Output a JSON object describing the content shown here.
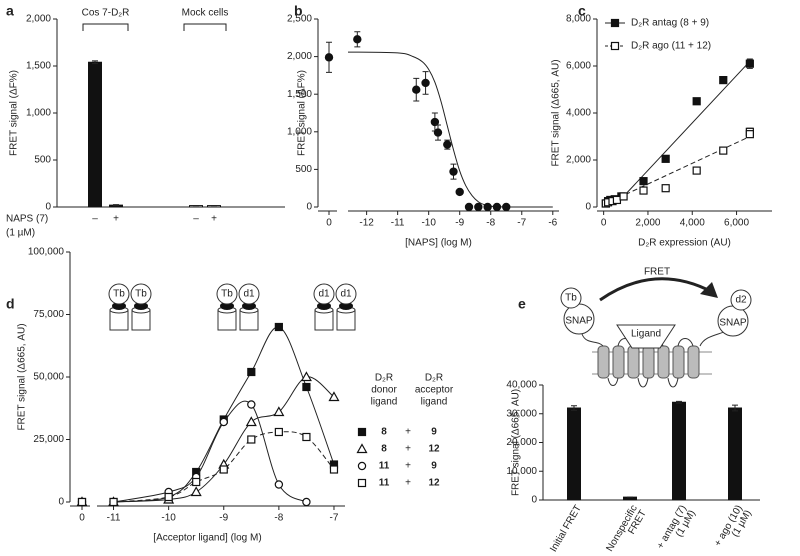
{
  "chart_data": [
    {
      "panel": "a",
      "type": "bar",
      "ylabel": "FRET signal (ΔF%)",
      "groups": [
        "Cos 7-D₂R",
        "Mock cells"
      ],
      "categories": [
        "–",
        "+",
        "–",
        "+"
      ],
      "treatment_label": "NAPS (7)",
      "treatment_dose": "(1 µM)",
      "values": [
        1540,
        20,
        15,
        15
      ],
      "errors": [
        15,
        5,
        0,
        0
      ],
      "colors": [
        "#111111",
        "#111111",
        "#ffffff",
        "#ffffff"
      ],
      "ylim": [
        0,
        2000
      ],
      "yticks": [
        0,
        500,
        {
          "value": 1000,
          "label": "1,000"
        },
        {
          "value": 1500,
          "label": "1,500"
        },
        {
          "value": 2000,
          "label": "2,000"
        }
      ]
    },
    {
      "panel": "b",
      "type": "scatter",
      "ylabel": "FRET signal (ΔF%)",
      "xlabel": "[NAPS] (log M)",
      "marker": "circle",
      "filled": true,
      "control_label": "0",
      "control": {
        "value": 1990,
        "error": 200
      },
      "x": [
        -12.3,
        -10.4,
        -10.1,
        -9.8,
        -9.7,
        -9.4,
        -9.2,
        -9.0,
        -8.7,
        -8.4,
        -8.1,
        -7.8,
        -7.5
      ],
      "values": [
        2230,
        1560,
        1650,
        1130,
        990,
        830,
        470,
        200,
        0,
        0,
        0,
        0,
        0
      ],
      "errors": [
        100,
        150,
        150,
        120,
        100,
        60,
        100,
        0,
        0,
        0,
        0,
        0,
        0
      ],
      "fit": {
        "x": [
          -12.6,
          -11,
          -10.5,
          -10.2,
          -10,
          -9.8,
          -9.6,
          -9.4,
          -9.2,
          -9,
          -8.8,
          -8.6,
          -8.4,
          -8.2,
          -8,
          -7.5,
          -7,
          -6
        ],
        "values": [
          2060,
          2050,
          2000,
          1930,
          1830,
          1660,
          1400,
          1080,
          760,
          480,
          280,
          150,
          70,
          30,
          10,
          0,
          0,
          0
        ]
      },
      "xlim": [
        -12.6,
        -5.8
      ],
      "xticks": [
        -12,
        -11,
        -10,
        -9,
        -8,
        -7,
        -6
      ],
      "ylim": [
        0,
        2500
      ],
      "yticks": [
        0,
        500,
        {
          "value": 1000,
          "label": "1,000"
        },
        {
          "value": 1500,
          "label": "1,500"
        },
        {
          "value": 2000,
          "label": "2,000"
        },
        {
          "value": 2500,
          "label": "2,500"
        }
      ]
    },
    {
      "panel": "c",
      "type": "scatter",
      "ylabel": "FRET signal (Δ665, AU)",
      "xlabel": "D₂R expression (AU)",
      "legend": "upper left",
      "series": [
        {
          "name": "D₂R antag (8 + 9)",
          "marker": "square",
          "filled": true,
          "dashed": false,
          "x": [
            100,
            200,
            300,
            500,
            800,
            1800,
            2800,
            4200,
            5400,
            6600
          ],
          "values": [
            150,
            250,
            300,
            330,
            450,
            1100,
            2050,
            4500,
            5400,
            6100
          ],
          "errors": [
            0,
            0,
            0,
            0,
            0,
            0,
            0,
            0,
            0,
            200
          ],
          "line_x": [
            800,
            6600
          ],
          "line_values": [
            350,
            6200
          ]
        },
        {
          "name": "D₂R ago (11 + 12)",
          "marker": "square",
          "filled": false,
          "dashed": true,
          "x": [
            100,
            200,
            400,
            600,
            900,
            1800,
            2800,
            4200,
            5400,
            6600,
            6600
          ],
          "values": [
            150,
            200,
            250,
            300,
            450,
            700,
            800,
            1550,
            2400,
            3200,
            3100
          ],
          "errors": [
            0,
            0,
            0,
            0,
            0,
            0,
            0,
            0,
            0,
            150,
            0
          ],
          "line_x": [
            0,
            6600
          ],
          "line_values": [
            100,
            3000
          ]
        }
      ],
      "xlim": [
        -300,
        7600
      ],
      "xticks": [
        0,
        {
          "value": 2000,
          "label": "2,000"
        },
        {
          "value": 4000,
          "label": "4,000"
        },
        {
          "value": 6000,
          "label": "6,000"
        }
      ],
      "ylim": [
        0,
        8000
      ],
      "yticks": [
        0,
        {
          "value": 2000,
          "label": "2,000"
        },
        {
          "value": 4000,
          "label": "4,000"
        },
        {
          "value": 6000,
          "label": "6,000"
        },
        {
          "value": 8000,
          "label": "8,000"
        }
      ]
    },
    {
      "panel": "d",
      "type": "line",
      "ylabel": "FRET signal (Δ665, AU)",
      "xlabel": "[Acceptor ligand] (log M)",
      "schematic": [
        [
          "Tb",
          "Tb"
        ],
        [
          "Tb",
          "d1"
        ],
        [
          "d1",
          "d1"
        ]
      ],
      "legend_headers": [
        [
          "D₂R",
          "donor",
          "ligand"
        ],
        [
          "D₂R",
          "acceptor",
          "ligand"
        ]
      ],
      "legend_join": "+",
      "control_label": "0",
      "x": [
        -11,
        -10,
        -9.5,
        -9,
        -8.5,
        -8,
        -7.5,
        -7
      ],
      "series": [
        {
          "donor": "8",
          "acceptor": "9",
          "marker": "square",
          "filled": true,
          "dashed": false,
          "control": 0,
          "values": [
            0,
            2000,
            12000,
            33000,
            52000,
            70000,
            46000,
            15000
          ]
        },
        {
          "donor": "8",
          "acceptor": "12",
          "marker": "triangle",
          "filled": false,
          "dashed": false,
          "control": 0,
          "values": [
            0,
            1000,
            4000,
            15000,
            32000,
            36000,
            50000,
            42000
          ]
        },
        {
          "donor": "11",
          "acceptor": "9",
          "marker": "circle",
          "filled": false,
          "dashed": false,
          "control": 0,
          "values": [
            0,
            4000,
            10000,
            32000,
            39000,
            7000,
            0,
            null
          ]
        },
        {
          "donor": "11",
          "acceptor": "12",
          "marker": "square",
          "filled": false,
          "dashed": true,
          "control": 0,
          "values": [
            0,
            2000,
            8000,
            13000,
            25000,
            28000,
            26000,
            13000
          ]
        }
      ],
      "xlim": [
        -11.3,
        -6.8
      ],
      "xticks": [
        -11,
        -10,
        -9,
        -8,
        -7
      ],
      "ylim": [
        0,
        100000
      ],
      "yticks": [
        0,
        {
          "value": 25000,
          "label": "25,000"
        },
        {
          "value": 50000,
          "label": "50,000"
        },
        {
          "value": 75000,
          "label": "75,000"
        },
        {
          "value": 100000,
          "label": "100,000"
        }
      ]
    },
    {
      "panel": "e",
      "type": "bar",
      "ylabel": "FRET signal (Δ665, AU)",
      "schematic": {
        "fret": "FRET",
        "donor": "Tb",
        "donor_tag": "SNAP",
        "ligand": "Ligand",
        "acceptor": "d2",
        "acceptor_tag": "SNAP"
      },
      "categories": [
        [
          "Initial FRET"
        ],
        [
          "Nonspecific",
          "FRET"
        ],
        [
          "+ antag (7)",
          "(1 µM)"
        ],
        [
          "+ ago (10)",
          "(1 µM)"
        ]
      ],
      "values": [
        32000,
        1000,
        34000,
        32000
      ],
      "errors": [
        800,
        0,
        300,
        1000
      ],
      "colors": [
        "#111111",
        "#111111",
        "#111111",
        "#111111"
      ],
      "ylim": [
        0,
        40000
      ],
      "yticks": [
        0,
        {
          "value": 10000,
          "label": "10,000"
        },
        {
          "value": 20000,
          "label": "20,000"
        },
        {
          "value": 30000,
          "label": "30,000"
        },
        {
          "value": 40000,
          "label": "40,000"
        }
      ]
    }
  ]
}
